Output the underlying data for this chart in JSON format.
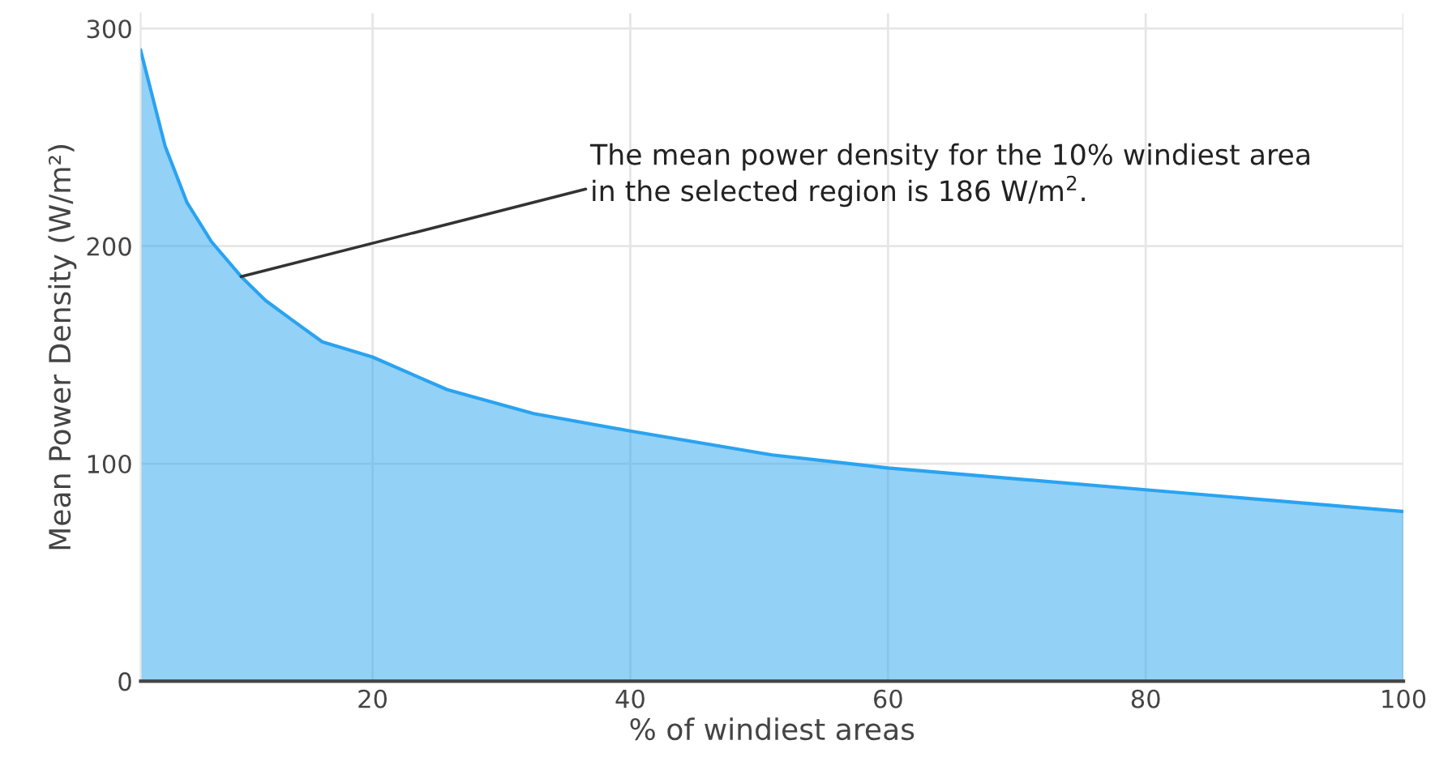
{
  "chart_data": {
    "type": "area",
    "xlabel": "% of windiest areas",
    "ylabel": "Mean Power Density (W/m²)",
    "x": [
      2,
      3.9,
      5.6,
      7.5,
      9.8,
      11.7,
      14,
      16.1,
      20,
      25.8,
      32.5,
      40,
      51,
      60,
      70,
      80,
      90,
      100
    ],
    "series": [
      {
        "color": "#2aa3f0",
        "values": [
          290,
          246,
          220,
          202,
          186,
          175,
          165,
          156,
          149,
          134,
          123,
          115,
          104,
          98,
          93,
          88,
          83,
          78
        ]
      }
    ],
    "xlim": [
      2,
      100
    ],
    "ylim": [
      0,
      307
    ],
    "xticks": [
      20,
      40,
      60,
      80,
      100
    ],
    "yticks": [
      0,
      100,
      200,
      300
    ],
    "grid": true,
    "annotations": [
      {
        "text": "The mean power density for the 10% windiest area\nin the selected region is 186 W/m$^{2}$.",
        "x": 9.8,
        "y": 186
      }
    ]
  }
}
